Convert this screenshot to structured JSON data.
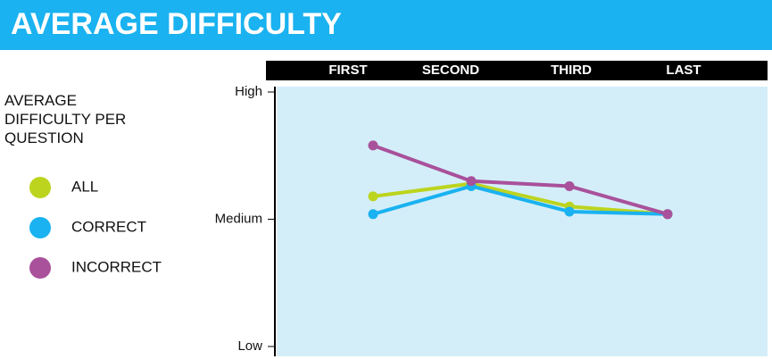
{
  "chart_data": {
    "type": "line",
    "title": "AVERAGE DIFFICULTY",
    "legend_title": "AVERAGE DIFFICULTY PER QUESTION",
    "categories": [
      "FIRST",
      "SECOND",
      "THIRD",
      "LAST"
    ],
    "series": [
      {
        "name": "ALL",
        "color": "#bcd41e",
        "values": [
          59,
          64,
          55,
          52
        ]
      },
      {
        "name": "CORRECT",
        "color": "#1ab2f0",
        "values": [
          52,
          63,
          53,
          52
        ]
      },
      {
        "name": "INCORRECT",
        "color": "#a9519b",
        "values": [
          79,
          65,
          63,
          52
        ]
      }
    ],
    "ylim": [
      0,
      100
    ],
    "yticks": [
      {
        "value": 100,
        "label": "High"
      },
      {
        "value": 50,
        "label": "Medium"
      },
      {
        "value": 0,
        "label": "Low"
      }
    ],
    "legend": "left"
  }
}
